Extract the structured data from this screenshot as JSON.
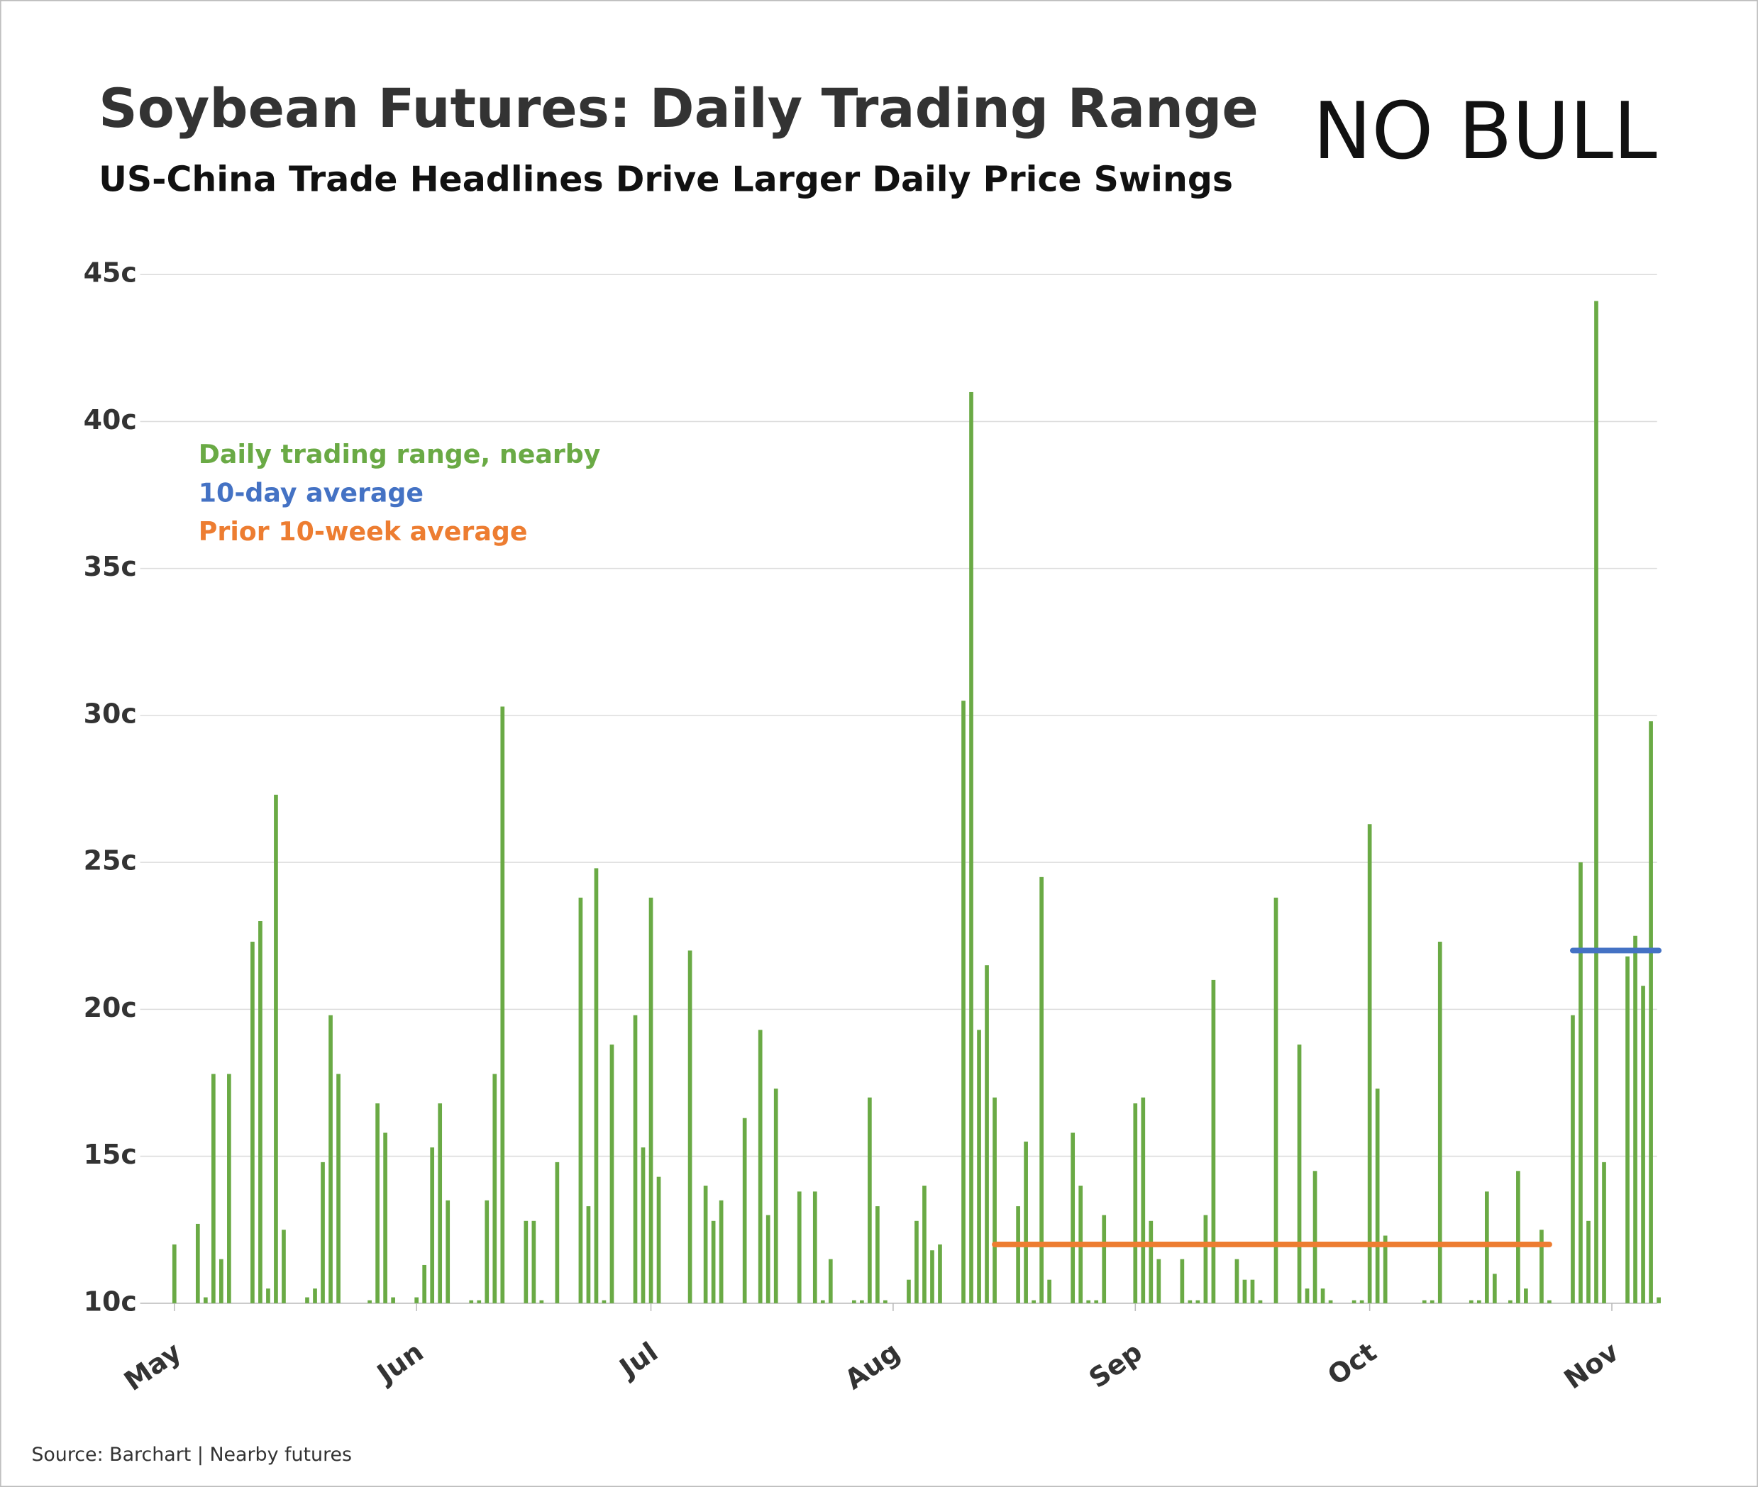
{
  "logo": "NO BULL",
  "chart_data": {
    "type": "bar",
    "title": "Soybean Futures: Daily Trading Range",
    "subtitle": "US-China Trade Headlines Drive Larger Daily Price Swings",
    "source": "Source: Barchart | Nearby futures",
    "categories": [
      "May",
      null,
      null,
      null,
      null,
      null,
      null,
      null,
      null,
      null,
      null,
      null,
      null,
      null,
      null,
      null,
      null,
      null,
      null,
      null,
      null,
      null,
      null,
      null,
      null,
      null,
      null,
      null,
      null,
      null,
      null,
      "Jun",
      null,
      null,
      null,
      null,
      null,
      null,
      null,
      null,
      null,
      null,
      null,
      null,
      null,
      null,
      null,
      null,
      null,
      null,
      null,
      null,
      null,
      null,
      null,
      null,
      null,
      null,
      null,
      null,
      null,
      "Jul",
      null,
      null,
      null,
      null,
      null,
      null,
      null,
      null,
      null,
      null,
      null,
      null,
      null,
      null,
      null,
      null,
      null,
      null,
      null,
      null,
      null,
      null,
      null,
      null,
      null,
      null,
      null,
      null,
      null,
      null,
      "Aug",
      null,
      null,
      null,
      null,
      null,
      null,
      null,
      null,
      null,
      null,
      null,
      null,
      null,
      null,
      null,
      null,
      null,
      null,
      null,
      null,
      null,
      null,
      null,
      null,
      null,
      null,
      null,
      null,
      null,
      null,
      "Sep",
      null,
      null,
      null,
      null,
      null,
      null,
      null,
      null,
      null,
      null,
      null,
      null,
      null,
      null,
      null,
      null,
      null,
      null,
      null,
      null,
      null,
      null,
      null,
      null,
      null,
      null,
      null,
      null,
      null,
      "Oct",
      null,
      null,
      null,
      null,
      null,
      null,
      null,
      null,
      null,
      null,
      null,
      null,
      null,
      null,
      null,
      null,
      null,
      null,
      null,
      null,
      null,
      null,
      null,
      null,
      null,
      null,
      null,
      null,
      null,
      null,
      "Nov",
      null,
      null,
      null,
      null,
      null,
      null
    ],
    "series": [
      {
        "name": "Daily trading range, nearby",
        "color": "#6aaa45",
        "type": "bar",
        "values": [
          12.0,
          null,
          null,
          12.7,
          10.2,
          17.8,
          11.5,
          17.8,
          null,
          null,
          22.3,
          23.0,
          10.5,
          27.3,
          12.5,
          null,
          null,
          10.2,
          10.5,
          14.8,
          19.8,
          17.8,
          null,
          null,
          null,
          10.1,
          16.8,
          15.8,
          10.2,
          null,
          null,
          10.2,
          11.3,
          15.3,
          16.8,
          13.5,
          null,
          null,
          10.1,
          10.1,
          13.5,
          17.8,
          30.3,
          null,
          null,
          12.8,
          12.8,
          10.1,
          null,
          14.8,
          null,
          null,
          23.8,
          13.3,
          24.8,
          10.1,
          18.8,
          null,
          null,
          19.8,
          15.3,
          23.8,
          14.3,
          null,
          null,
          null,
          22.0,
          null,
          14.0,
          12.8,
          13.5,
          null,
          null,
          16.3,
          null,
          19.3,
          13.0,
          17.3,
          null,
          null,
          13.8,
          null,
          13.8,
          10.1,
          11.5,
          null,
          null,
          10.1,
          10.1,
          17.0,
          13.3,
          10.1,
          null,
          null,
          10.8,
          12.8,
          14.0,
          11.8,
          12.0,
          null,
          null,
          30.5,
          41.0,
          19.3,
          21.5,
          17.0,
          null,
          null,
          13.3,
          15.5,
          10.1,
          24.5,
          10.8,
          null,
          null,
          15.8,
          14.0,
          10.1,
          10.1,
          13.0,
          null,
          null,
          null,
          16.8,
          17.0,
          12.8,
          11.5,
          null,
          null,
          11.5,
          10.1,
          10.1,
          13.0,
          21.0,
          null,
          null,
          11.5,
          10.8,
          10.8,
          10.1,
          null,
          23.8,
          null,
          null,
          18.8,
          10.5,
          14.5,
          10.5,
          10.1,
          null,
          null,
          10.1,
          10.1,
          26.3,
          17.3,
          12.3,
          null,
          null,
          null,
          null,
          10.1,
          10.1,
          22.3,
          null,
          null,
          null,
          10.1,
          10.1,
          13.8,
          11.0,
          null,
          10.1,
          14.5,
          10.5,
          null,
          12.5,
          10.1,
          null,
          null,
          19.8,
          25.0,
          12.8,
          44.1,
          14.8,
          null,
          null,
          21.8,
          22.5,
          20.8,
          29.8,
          10.2
        ]
      },
      {
        "name": "10-day average",
        "color": "#4472c4",
        "type": "line",
        "values": [
          null,
          null,
          null,
          null,
          null,
          null,
          null,
          null,
          null,
          null,
          null,
          null,
          null,
          null,
          null,
          null,
          null,
          null,
          null,
          null,
          null,
          null,
          null,
          null,
          null,
          null,
          null,
          null,
          null,
          null,
          null,
          null,
          null,
          null,
          null,
          null,
          null,
          null,
          null,
          null,
          null,
          null,
          null,
          null,
          null,
          null,
          null,
          null,
          null,
          null,
          null,
          null,
          null,
          null,
          null,
          null,
          null,
          null,
          null,
          null,
          null,
          null,
          null,
          null,
          null,
          null,
          null,
          null,
          null,
          null,
          null,
          null,
          null,
          null,
          null,
          null,
          null,
          null,
          null,
          null,
          null,
          null,
          null,
          null,
          null,
          null,
          null,
          null,
          null,
          null,
          null,
          null,
          null,
          null,
          null,
          null,
          null,
          null,
          null,
          null,
          null,
          null,
          null,
          null,
          null,
          null,
          null,
          null,
          null,
          null,
          null,
          null,
          null,
          null,
          null,
          null,
          null,
          null,
          null,
          null,
          null,
          null,
          null,
          null,
          null,
          null,
          null,
          null,
          null,
          null,
          null,
          null,
          null,
          null,
          null,
          null,
          null,
          null,
          null,
          null,
          null,
          null,
          null,
          null,
          null,
          null,
          null,
          null,
          null,
          null,
          null,
          null,
          null,
          null,
          null,
          null,
          null,
          null,
          null,
          null,
          null,
          null,
          null,
          null,
          null,
          null,
          null,
          null,
          null,
          null,
          null,
          null,
          null,
          null,
          null,
          null,
          null,
          null,
          null,
          22,
          22,
          22,
          22,
          22,
          22,
          22,
          22,
          22,
          22,
          22,
          22
        ]
      },
      {
        "name": "Prior 10-week average",
        "color": "#ed7d31",
        "type": "line",
        "values": [
          null,
          null,
          null,
          null,
          null,
          null,
          null,
          null,
          null,
          null,
          null,
          null,
          null,
          null,
          null,
          null,
          null,
          null,
          null,
          null,
          null,
          null,
          null,
          null,
          null,
          null,
          null,
          null,
          null,
          null,
          null,
          null,
          null,
          null,
          null,
          null,
          null,
          null,
          null,
          null,
          null,
          null,
          null,
          null,
          null,
          null,
          null,
          null,
          null,
          null,
          null,
          null,
          null,
          null,
          null,
          null,
          null,
          null,
          null,
          null,
          null,
          null,
          null,
          null,
          null,
          null,
          null,
          null,
          null,
          null,
          null,
          null,
          null,
          null,
          null,
          null,
          null,
          null,
          null,
          null,
          null,
          null,
          null,
          null,
          null,
          null,
          null,
          null,
          null,
          null,
          null,
          null,
          null,
          null,
          null,
          null,
          null,
          null,
          null,
          null,
          null,
          null,
          null,
          null,
          null,
          12,
          12,
          12,
          12,
          12,
          12,
          12,
          12,
          12,
          12,
          12,
          12,
          12,
          12,
          12,
          12,
          12,
          12,
          12,
          12,
          12,
          12,
          12,
          12,
          12,
          12,
          12,
          12,
          12,
          12,
          12,
          12,
          12,
          12,
          12,
          12,
          12,
          12,
          12,
          12,
          12,
          12,
          12,
          12,
          12,
          12,
          12,
          12,
          12,
          12,
          12,
          12,
          12,
          12,
          12,
          12,
          12,
          12,
          12,
          12,
          12,
          12,
          12,
          12,
          12,
          12,
          12,
          12,
          12,
          12,
          12,
          12,
          null,
          null,
          null,
          null,
          null,
          null,
          null,
          null,
          null,
          null,
          null,
          null,
          null,
          null
        ]
      }
    ],
    "ylim": [
      10,
      45
    ],
    "yticks": [
      {
        "value": 10,
        "label": "10c"
      },
      {
        "value": 15,
        "label": "15c"
      },
      {
        "value": 20,
        "label": "20c"
      },
      {
        "value": 25,
        "label": "25c"
      },
      {
        "value": 30,
        "label": "30c"
      },
      {
        "value": 35,
        "label": "35c"
      },
      {
        "value": 40,
        "label": "40c"
      },
      {
        "value": 45,
        "label": "45c"
      }
    ],
    "grid": true,
    "legend": "top-left"
  }
}
